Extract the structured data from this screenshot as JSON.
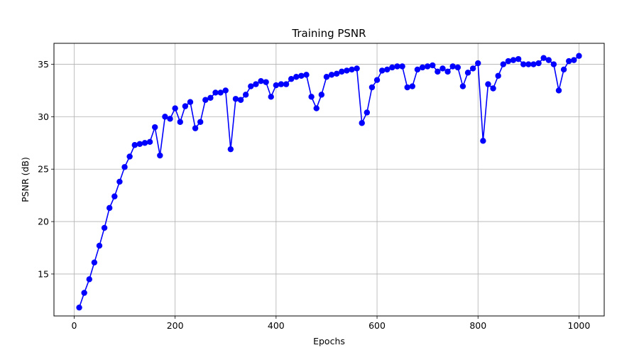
{
  "chart_data": {
    "type": "line",
    "title": "Training PSNR",
    "xlabel": "Epochs",
    "ylabel": "PSNR (dB)",
    "xlim": [
      -40,
      1050
    ],
    "ylim": [
      11,
      37
    ],
    "xticks": [
      0,
      200,
      400,
      600,
      800,
      1000
    ],
    "yticks": [
      15,
      20,
      25,
      30,
      35
    ],
    "grid": true,
    "marker": "circle",
    "color": "#0000ff",
    "series": [
      {
        "x": [
          10,
          20,
          30,
          40,
          50,
          60,
          70,
          80,
          90,
          100,
          110,
          120,
          130,
          140,
          150,
          160,
          170,
          180,
          190,
          200,
          210,
          220,
          230,
          240,
          250,
          260,
          270,
          280,
          290,
          300,
          310,
          320,
          330,
          340,
          350,
          360,
          370,
          380,
          390,
          400,
          410,
          420,
          430,
          440,
          450,
          460,
          470,
          480,
          490,
          500,
          510,
          520,
          530,
          540,
          550,
          560,
          570,
          580,
          590,
          600,
          610,
          620,
          630,
          640,
          650,
          660,
          670,
          680,
          690,
          700,
          710,
          720,
          730,
          740,
          750,
          760,
          770,
          780,
          790,
          800,
          810,
          820,
          830,
          840,
          850,
          860,
          870,
          880,
          890,
          900,
          910,
          920,
          930,
          940,
          950,
          960,
          970,
          980,
          990,
          1000
        ],
        "y": [
          11.8,
          13.2,
          14.5,
          16.1,
          17.7,
          19.4,
          21.3,
          22.4,
          23.8,
          25.2,
          26.2,
          27.3,
          27.4,
          27.5,
          27.6,
          29.0,
          26.3,
          30.0,
          29.8,
          30.8,
          29.5,
          31.0,
          31.4,
          28.9,
          29.5,
          31.6,
          31.8,
          32.3,
          32.3,
          32.5,
          26.9,
          31.7,
          31.6,
          32.1,
          32.9,
          33.1,
          33.4,
          33.3,
          31.9,
          33.0,
          33.1,
          33.1,
          33.6,
          33.8,
          33.9,
          34.0,
          31.9,
          30.8,
          32.1,
          33.8,
          34.0,
          34.1,
          34.3,
          34.4,
          34.5,
          34.6,
          29.4,
          30.4,
          32.8,
          33.5,
          34.4,
          34.5,
          34.7,
          34.8,
          34.8,
          32.8,
          32.9,
          34.5,
          34.7,
          34.8,
          34.9,
          34.3,
          34.6,
          34.3,
          34.8,
          34.7,
          32.9,
          34.2,
          34.6,
          35.1,
          27.7,
          33.1,
          32.7,
          33.9,
          35.0,
          35.3,
          35.4,
          35.5,
          35.0,
          35.0,
          35.0,
          35.1,
          35.6,
          35.4,
          35.0,
          32.5,
          34.5,
          35.3,
          35.4,
          35.8
        ]
      }
    ]
  }
}
